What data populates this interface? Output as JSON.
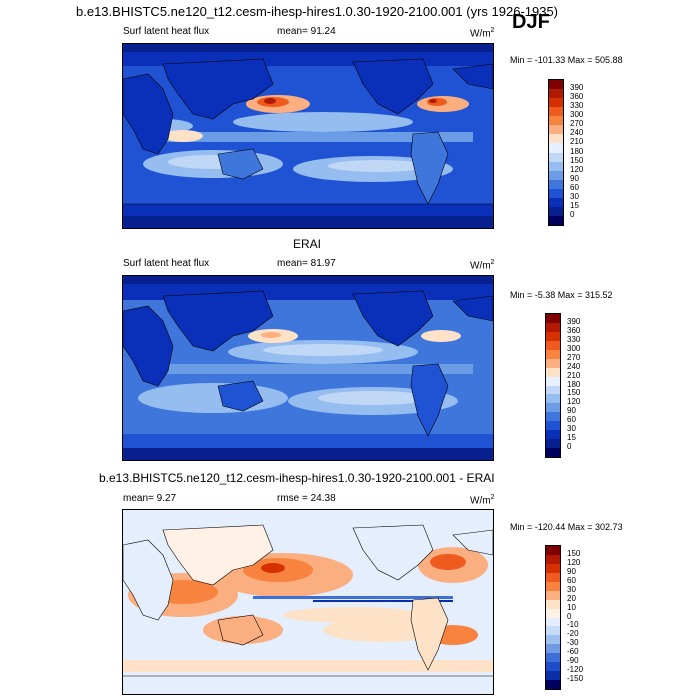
{
  "title_top": "b.e13.BHISTC5.ne120_t12.cesm-ihesp-hires1.0.30-1920-2100.001 (yrs 1926-1935)",
  "season": "DJF",
  "panel1": {
    "variable": "Surf latent heat flux",
    "mean_text": "mean=  91.24",
    "units": "W/m",
    "units_sup": "2",
    "minmax": "Min = -101.33 Max = 505.88",
    "levels": [
      "390",
      "360",
      "330",
      "300",
      "270",
      "240",
      "210",
      "180",
      "150",
      "120",
      "90",
      "60",
      "30",
      "15",
      "0"
    ]
  },
  "panel2_title": "ERAI",
  "panel2": {
    "variable": "Surf latent heat flux",
    "mean_text": "mean=  81.97",
    "units": "W/m",
    "units_sup": "2",
    "minmax": "Min =  -5.38 Max = 315.52",
    "levels": [
      "390",
      "360",
      "330",
      "300",
      "270",
      "240",
      "210",
      "180",
      "150",
      "120",
      "90",
      "60",
      "30",
      "15",
      "0"
    ]
  },
  "panel3_title": "b.e13.BHISTC5.ne120_t12.cesm-ihesp-hires1.0.30-1920-2100.001 - ERAI",
  "panel3": {
    "mean_text": "mean=   9.27",
    "rmse_text": "rmse =  24.38",
    "units": "W/m",
    "units_sup": "2",
    "minmax": "Min = -120.44 Max = 302.73",
    "levels": [
      "150",
      "120",
      "90",
      "60",
      "30",
      "20",
      "10",
      "0",
      "-10",
      "-20",
      "-30",
      "-60",
      "-90",
      "-120",
      "-150"
    ]
  },
  "colors": {
    "abs": [
      "#7f0000",
      "#b11a00",
      "#d63000",
      "#ef5a1f",
      "#f7833f",
      "#fbae7f",
      "#fde2c8",
      "#e6f0ff",
      "#c0d7f6",
      "#96bdef",
      "#6b9de6",
      "#3e76dc",
      "#1f53d4",
      "#0a2fb8",
      "#071f8f",
      "#00005f"
    ],
    "diff": [
      "#7f0000",
      "#b11a00",
      "#d63000",
      "#ef5a1f",
      "#f7833f",
      "#fbae7f",
      "#fde2c8",
      "#fff1e6",
      "#e4eefc",
      "#c7dcf7",
      "#9fc1f0",
      "#6f9be4",
      "#3e6ed8",
      "#1f4cc9",
      "#0a2fa8",
      "#00005f"
    ]
  }
}
